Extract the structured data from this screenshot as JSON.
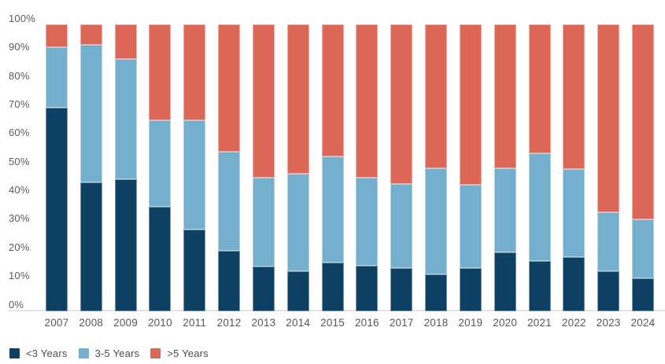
{
  "chart_data": {
    "type": "bar",
    "stacked": true,
    "stack_unit": "percent",
    "title": "",
    "categories": [
      "2007",
      "2008",
      "2009",
      "2010",
      "2011",
      "2012",
      "2013",
      "2014",
      "2015",
      "2016",
      "2017",
      "2018",
      "2019",
      "2020",
      "2021",
      "2022",
      "2023",
      "2024"
    ],
    "series": [
      {
        "name": "<3 Years",
        "color": "#0e4063",
        "values": [
          71,
          45,
          46,
          36.5,
          28.5,
          21,
          15.5,
          14,
          17,
          16,
          15,
          13,
          15,
          20.5,
          17.5,
          19,
          14,
          11.5
        ]
      },
      {
        "name": "3-5 Years",
        "color": "#74b0ce",
        "values": [
          21,
          48,
          42,
          30,
          38,
          34.5,
          31,
          34,
          37,
          30.5,
          29.5,
          37,
          29,
          29.5,
          37.5,
          30.5,
          20.5,
          20.5
        ]
      },
      {
        "name": ">5 Years",
        "color": "#dc6757",
        "values": [
          8,
          7,
          12,
          33.5,
          33.5,
          44.5,
          53.5,
          52,
          46,
          53.5,
          55.5,
          50,
          56,
          50,
          45,
          50.5,
          65.5,
          68
        ]
      }
    ],
    "y_ticks": [
      "100%",
      "90%",
      "80%",
      "70%",
      "60%",
      "50%",
      "40%",
      "30%",
      "20%",
      "10%",
      "0%"
    ],
    "ylim": [
      0,
      100
    ],
    "xlabel": "",
    "ylabel": "",
    "grid": false,
    "legend_position": "bottom-left",
    "colors": {
      "axis_line": "#e4e4e6",
      "tick_text": "#5a5b5f",
      "x_tick_text": "#56575b",
      "legend_text": "#4b4c50",
      "background": "#ffffff"
    }
  }
}
